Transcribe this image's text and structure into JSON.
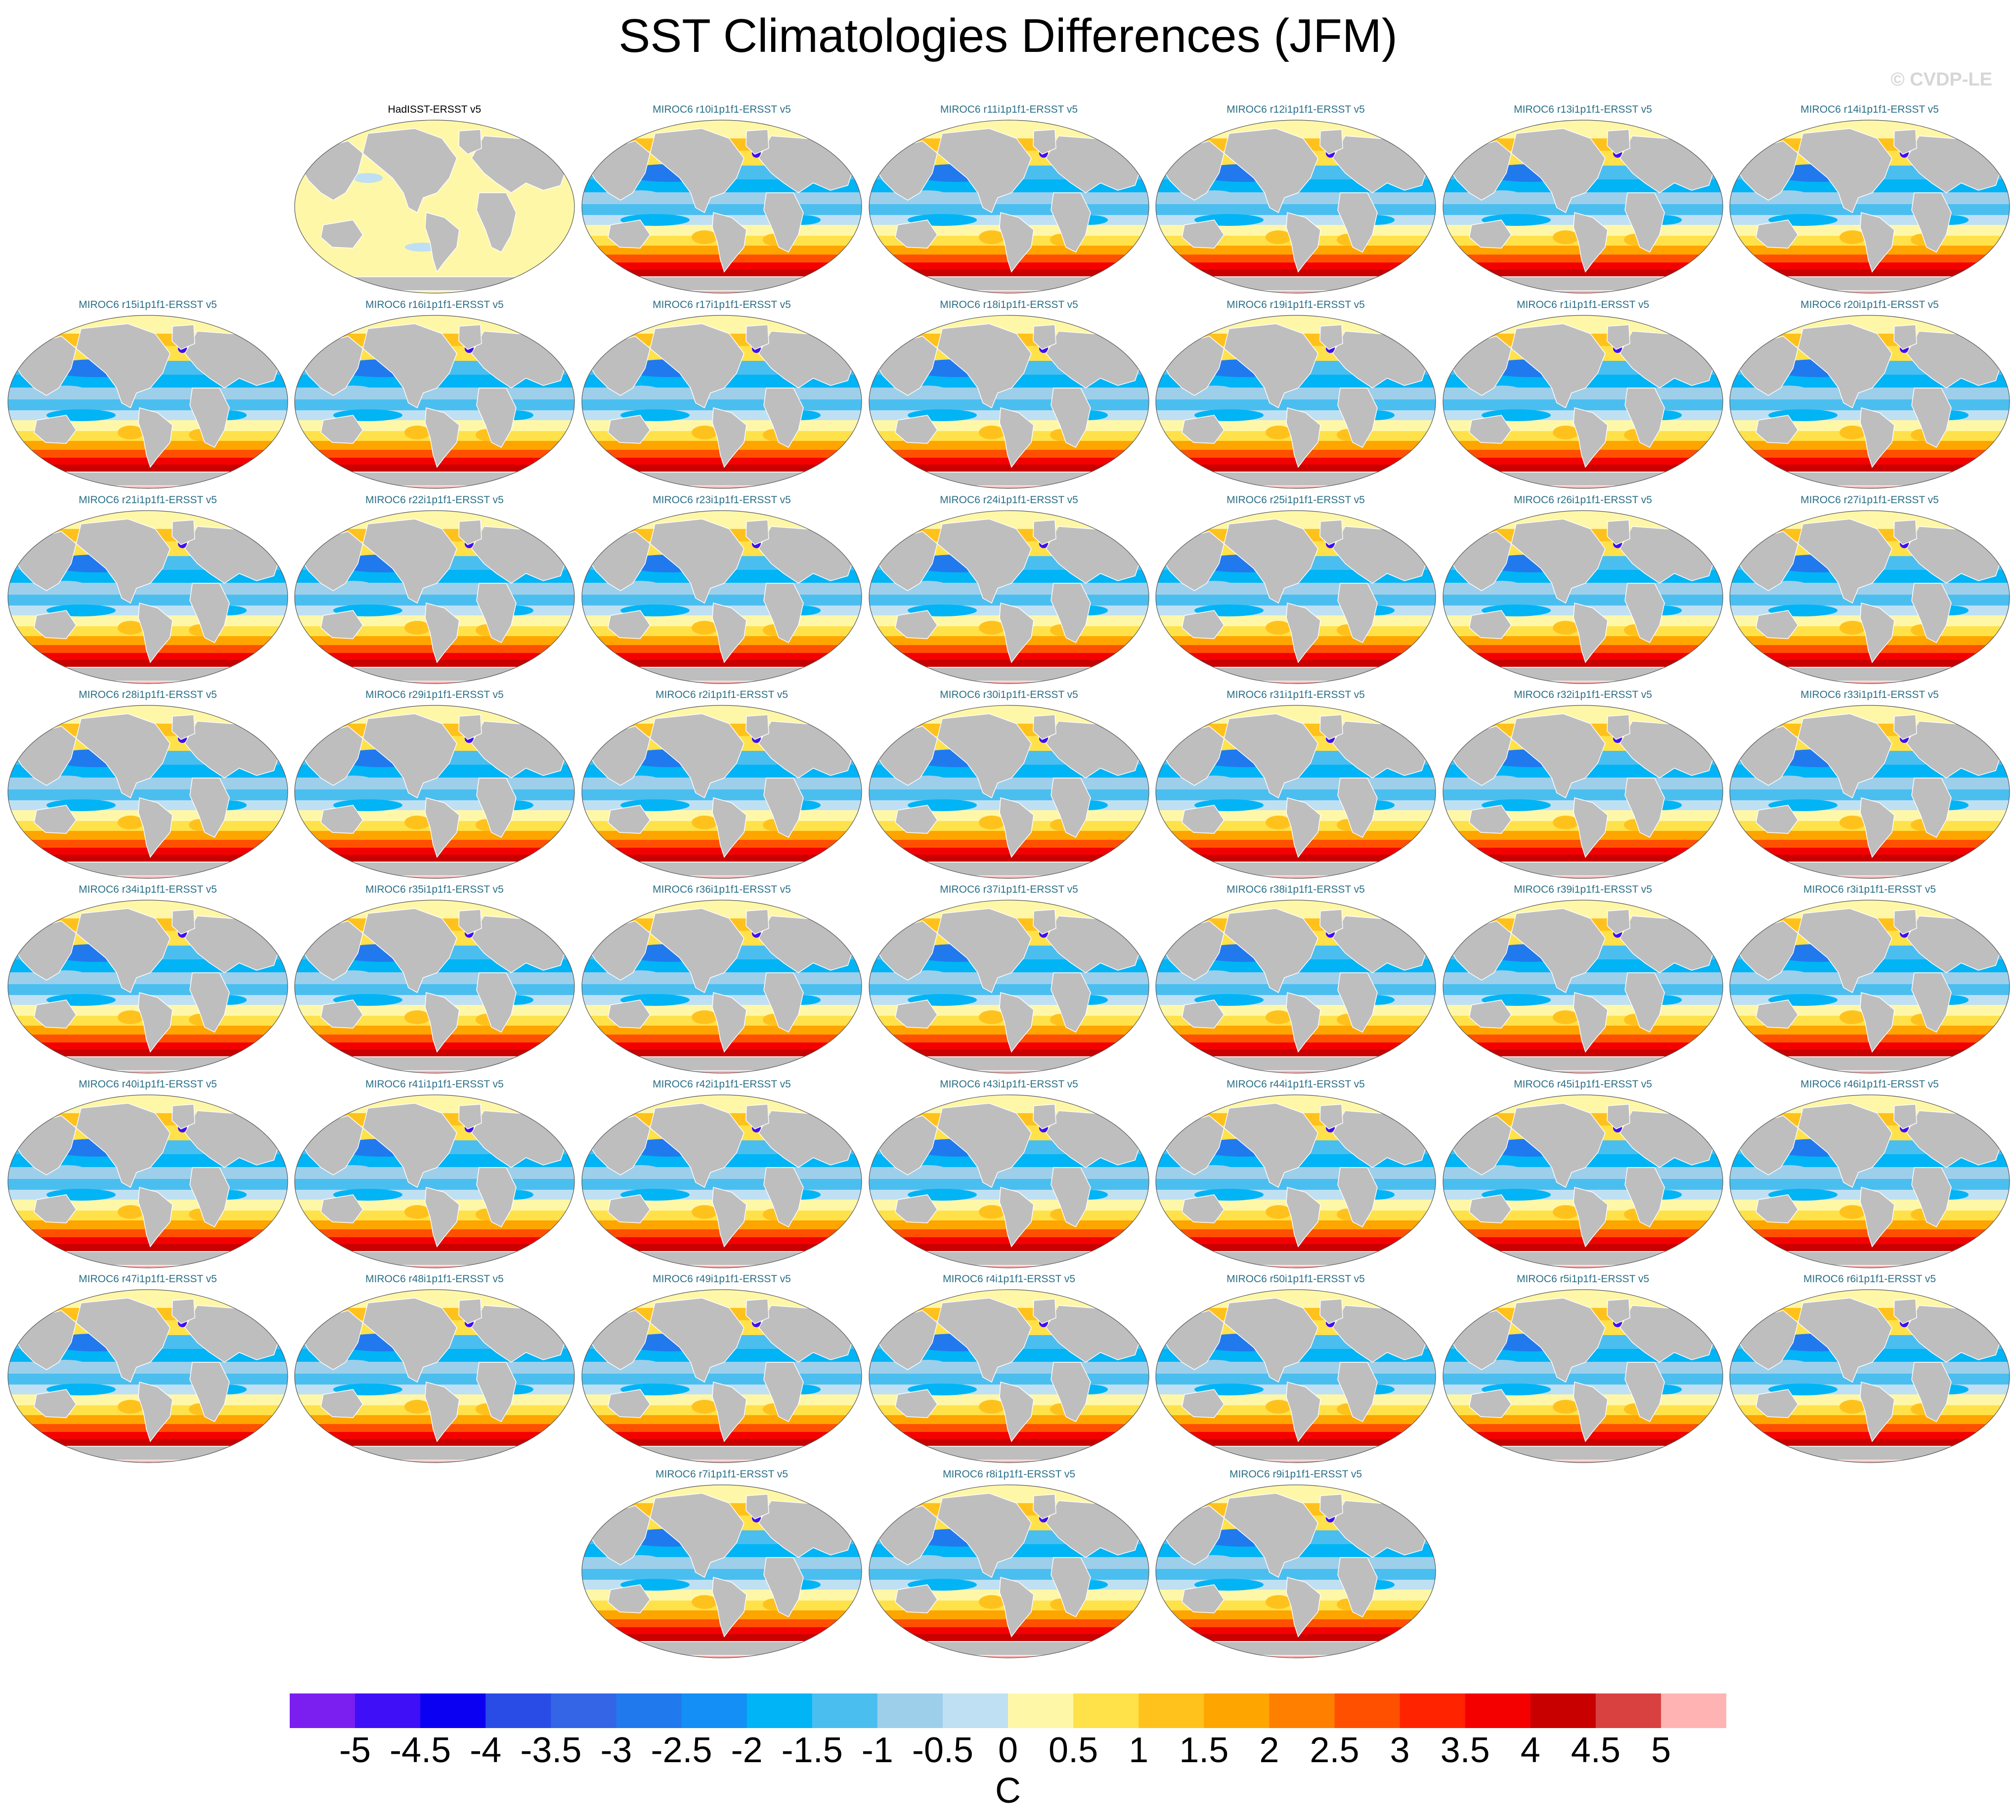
{
  "title": "SST Climatologies Differences (JFM)",
  "watermark": "© CVDP-LE",
  "colors": {
    "land": "#bebebe",
    "coast": "#ffffff",
    "panel_title": "#2a6f86"
  },
  "chart_data": {
    "type": "heatmap",
    "title": "SST Climatologies Differences (JFM)",
    "units": "C",
    "colorbar": {
      "labels": [
        "-5",
        "-4.5",
        "-4",
        "-3.5",
        "-3",
        "-2.5",
        "-2",
        "-1.5",
        "-1",
        "-0.5",
        "0",
        "0.5",
        "1",
        "1.5",
        "2",
        "2.5",
        "3",
        "3.5",
        "4",
        "4.5",
        "5"
      ],
      "colors": [
        "#7a1ff0",
        "#3f0ff7",
        "#0c00f3",
        "#2a4ce6",
        "#3365e6",
        "#2179ee",
        "#138ff5",
        "#00b4f5",
        "#4bbef0",
        "#9dcfea",
        "#bfe0f3",
        "#fff7a8",
        "#ffe14a",
        "#ffc21c",
        "#ffa500",
        "#ff7f00",
        "#ff5000",
        "#ff2300",
        "#f50000",
        "#c80000",
        "#d94040",
        "#ffb3b3"
      ]
    },
    "panels": [
      {
        "title": "HadISST-ERSST v5",
        "kind": "obs"
      },
      {
        "title": "MIROC6 r10i1p1f1-ERSST v5"
      },
      {
        "title": "MIROC6 r11i1p1f1-ERSST v5"
      },
      {
        "title": "MIROC6 r12i1p1f1-ERSST v5"
      },
      {
        "title": "MIROC6 r13i1p1f1-ERSST v5"
      },
      {
        "title": "MIROC6 r14i1p1f1-ERSST v5"
      },
      {
        "title": "MIROC6 r15i1p1f1-ERSST v5"
      },
      {
        "title": "MIROC6 r16i1p1f1-ERSST v5"
      },
      {
        "title": "MIROC6 r17i1p1f1-ERSST v5"
      },
      {
        "title": "MIROC6 r18i1p1f1-ERSST v5"
      },
      {
        "title": "MIROC6 r19i1p1f1-ERSST v5"
      },
      {
        "title": "MIROC6 r1i1p1f1-ERSST v5"
      },
      {
        "title": "MIROC6 r20i1p1f1-ERSST v5"
      },
      {
        "title": "MIROC6 r21i1p1f1-ERSST v5"
      },
      {
        "title": "MIROC6 r22i1p1f1-ERSST v5"
      },
      {
        "title": "MIROC6 r23i1p1f1-ERSST v5"
      },
      {
        "title": "MIROC6 r24i1p1f1-ERSST v5"
      },
      {
        "title": "MIROC6 r25i1p1f1-ERSST v5"
      },
      {
        "title": "MIROC6 r26i1p1f1-ERSST v5"
      },
      {
        "title": "MIROC6 r27i1p1f1-ERSST v5"
      },
      {
        "title": "MIROC6 r28i1p1f1-ERSST v5"
      },
      {
        "title": "MIROC6 r29i1p1f1-ERSST v5"
      },
      {
        "title": "MIROC6 r2i1p1f1-ERSST v5"
      },
      {
        "title": "MIROC6 r30i1p1f1-ERSST v5"
      },
      {
        "title": "MIROC6 r31i1p1f1-ERSST v5"
      },
      {
        "title": "MIROC6 r32i1p1f1-ERSST v5"
      },
      {
        "title": "MIROC6 r33i1p1f1-ERSST v5"
      },
      {
        "title": "MIROC6 r34i1p1f1-ERSST v5"
      },
      {
        "title": "MIROC6 r35i1p1f1-ERSST v5"
      },
      {
        "title": "MIROC6 r36i1p1f1-ERSST v5"
      },
      {
        "title": "MIROC6 r37i1p1f1-ERSST v5"
      },
      {
        "title": "MIROC6 r38i1p1f1-ERSST v5"
      },
      {
        "title": "MIROC6 r39i1p1f1-ERSST v5"
      },
      {
        "title": "MIROC6 r3i1p1f1-ERSST v5"
      },
      {
        "title": "MIROC6 r40i1p1f1-ERSST v5"
      },
      {
        "title": "MIROC6 r41i1p1f1-ERSST v5"
      },
      {
        "title": "MIROC6 r42i1p1f1-ERSST v5"
      },
      {
        "title": "MIROC6 r43i1p1f1-ERSST v5"
      },
      {
        "title": "MIROC6 r44i1p1f1-ERSST v5"
      },
      {
        "title": "MIROC6 r45i1p1f1-ERSST v5"
      },
      {
        "title": "MIROC6 r46i1p1f1-ERSST v5"
      },
      {
        "title": "MIROC6 r47i1p1f1-ERSST v5"
      },
      {
        "title": "MIROC6 r48i1p1f1-ERSST v5"
      },
      {
        "title": "MIROC6 r49i1p1f1-ERSST v5"
      },
      {
        "title": "MIROC6 r4i1p1f1-ERSST v5"
      },
      {
        "title": "MIROC6 r50i1p1f1-ERSST v5"
      },
      {
        "title": "MIROC6 r5i1p1f1-ERSST v5"
      },
      {
        "title": "MIROC6 r6i1p1f1-ERSST v5"
      },
      {
        "title": "MIROC6 r7i1p1f1-ERSST v5"
      },
      {
        "title": "MIROC6 r8i1p1f1-ERSST v5"
      },
      {
        "title": "MIROC6 r9i1p1f1-ERSST v5"
      }
    ]
  }
}
